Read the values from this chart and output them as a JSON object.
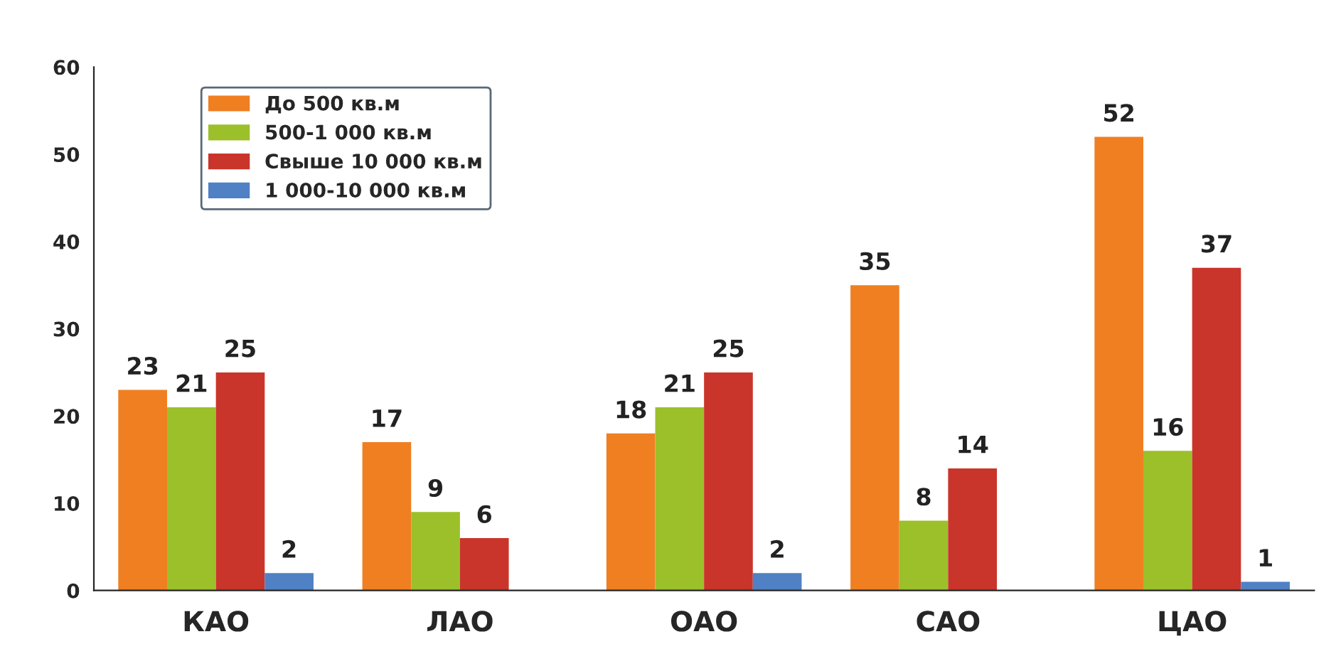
{
  "chart_data": {
    "type": "bar",
    "categories": [
      "КАО",
      "ЛАО",
      "ОАО",
      "САО",
      "ЦАО"
    ],
    "series": [
      {
        "name": "До 500 кв.м",
        "color": "#f07f22",
        "values": [
          23,
          17,
          18,
          35,
          52
        ]
      },
      {
        "name": "500-1 000 кв.м",
        "color": "#9bc02a",
        "values": [
          21,
          9,
          21,
          8,
          16
        ]
      },
      {
        "name": "Свыше 10 000 кв.м",
        "color": "#c9352b",
        "values": [
          25,
          6,
          25,
          14,
          37
        ]
      },
      {
        "name": "1 000-10 000 кв.м",
        "color": "#4f81c4",
        "values": [
          2,
          null,
          2,
          null,
          1
        ]
      }
    ],
    "ylim": [
      0,
      60
    ],
    "yticks": [
      0,
      10,
      20,
      30,
      40,
      50,
      60
    ],
    "data_labels": true,
    "legend": "top left",
    "grid": false
  }
}
